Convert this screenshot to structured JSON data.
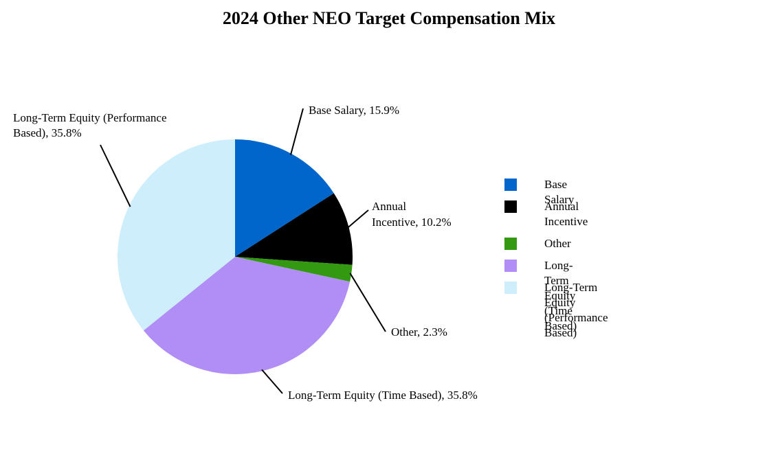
{
  "chart_data": {
    "type": "pie",
    "title": "2024 Other NEO Target Compensation Mix",
    "slices": [
      {
        "name": "Base Salary",
        "value": 15.9,
        "label": "Base Salary, 15.9%",
        "color": "#0066cc"
      },
      {
        "name": "Annual Incentive",
        "value": 10.2,
        "label": "Annual Incentive, 10.2%",
        "color": "#000000"
      },
      {
        "name": "Other",
        "value": 2.3,
        "label": "Other, 2.3%",
        "color": "#339911"
      },
      {
        "name": "Long-Term Equity (Time Based)",
        "value": 35.8,
        "label": "Long-Term Equity (Time Based), 35.8%",
        "color": "#b18ef5"
      },
      {
        "name": "Long-Term Equity (Performance Based)",
        "value": 35.8,
        "label": "Long-Term Equity (Performance Based), 35.8%",
        "color": "#ceeefc"
      }
    ],
    "legend": {
      "position": "right",
      "items": [
        "Base Salary",
        "Annual Incentive",
        "Other",
        "Long-Term Equity (Time Based)",
        "Long-Term Equity (Performance Based)"
      ]
    }
  }
}
